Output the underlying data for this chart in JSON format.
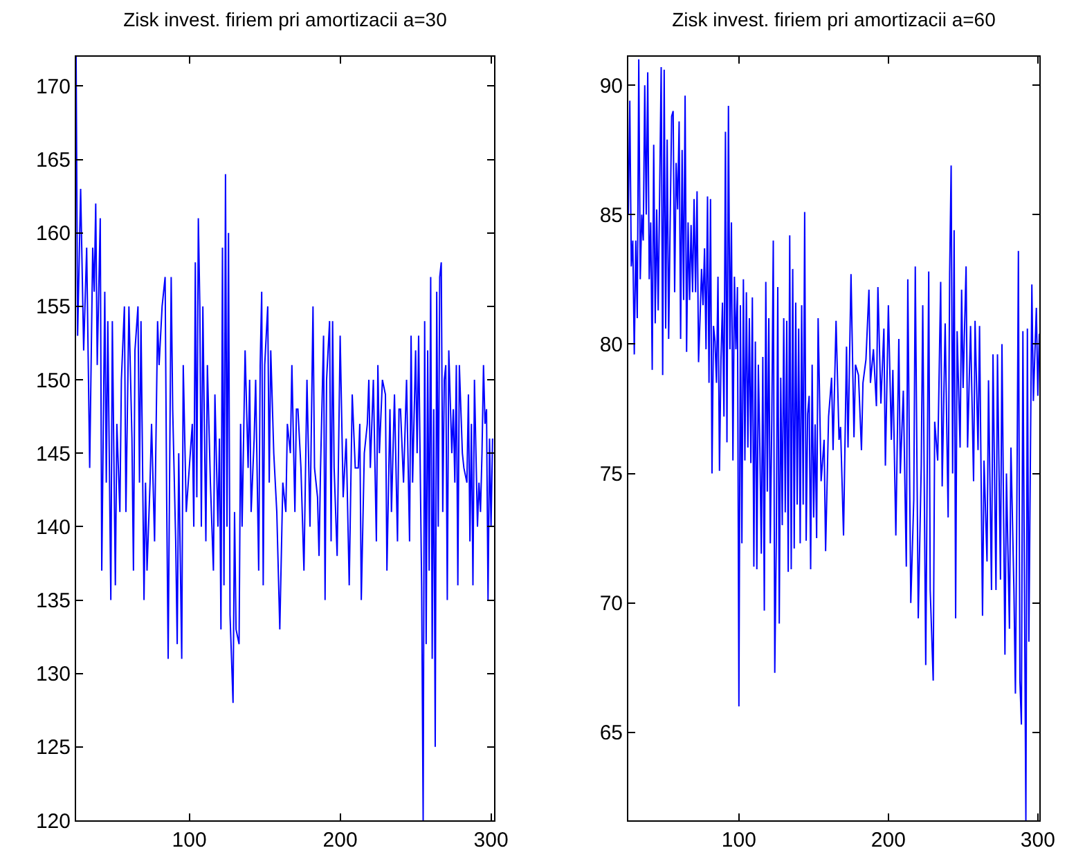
{
  "chart_data": [
    {
      "type": "line",
      "title": "Zisk invest. firiem pri amortizacii a=30",
      "xlim": [
        25,
        302
      ],
      "xticks": [
        100,
        200,
        300
      ],
      "ylim": [
        120,
        172
      ],
      "yticks": [
        120,
        125,
        130,
        135,
        140,
        145,
        150,
        155,
        160,
        165,
        170
      ],
      "grid": false,
      "marker": "none",
      "line_style": "solid",
      "x": [
        25,
        26,
        28,
        30,
        32,
        34,
        36,
        37,
        38,
        39,
        41,
        42,
        44,
        45,
        46,
        48,
        49,
        51,
        52,
        54,
        55,
        57,
        58,
        60,
        62,
        63,
        64,
        66,
        67,
        68,
        70,
        71,
        72,
        74,
        75,
        77,
        79,
        80,
        82,
        84,
        85,
        86,
        88,
        89,
        91,
        92,
        93,
        95,
        96,
        98,
        100,
        102,
        103,
        104,
        105,
        106,
        107,
        108,
        109,
        111,
        112,
        114,
        116,
        117,
        119,
        120,
        121,
        122,
        123,
        124,
        125,
        126,
        127,
        129,
        130,
        131,
        133,
        134,
        135,
        137,
        139,
        140,
        141,
        143,
        144,
        146,
        147,
        148,
        149,
        150,
        152,
        153,
        154,
        156,
        158,
        160,
        162,
        164,
        165,
        167,
        168,
        170,
        171,
        172,
        174,
        176,
        178,
        180,
        182,
        183,
        185,
        186,
        187,
        189,
        190,
        191,
        193,
        194,
        195,
        196,
        198,
        200,
        202,
        204,
        206,
        208,
        210,
        212,
        213,
        214,
        216,
        218,
        219,
        220,
        222,
        224,
        225,
        226,
        228,
        230,
        231,
        233,
        234,
        236,
        238,
        239,
        240,
        242,
        244,
        246,
        247,
        248,
        250,
        251,
        252,
        254,
        255,
        256,
        257,
        258,
        259,
        260,
        261,
        262,
        263,
        264,
        265,
        266,
        267,
        268,
        269,
        270,
        271,
        272,
        274,
        275,
        276,
        277,
        278,
        279,
        281,
        282,
        284,
        285,
        286,
        287,
        288,
        289,
        291,
        292,
        293,
        294,
        295,
        296,
        297,
        298,
        299,
        300,
        301
      ],
      "series": [
        {
          "color": "#0000ff",
          "values": [
            172,
            153,
            163,
            152,
            159,
            144,
            159,
            156,
            162,
            151,
            161,
            137,
            156,
            143,
            154,
            135,
            154,
            136,
            147,
            141,
            150,
            155,
            141,
            155,
            146,
            137,
            152,
            155,
            143,
            154,
            135,
            143,
            137,
            143,
            147,
            139,
            154,
            151,
            155,
            157,
            142,
            131,
            157,
            148,
            139,
            132,
            145,
            131,
            151,
            141,
            144,
            147,
            140,
            158,
            142,
            161,
            155,
            140,
            155,
            139,
            151,
            143,
            137,
            149,
            140,
            146,
            133,
            159,
            136,
            164,
            140,
            160,
            134,
            128,
            141,
            133,
            132,
            147,
            140,
            152,
            144,
            150,
            141,
            146,
            150,
            137,
            151,
            156,
            136,
            151,
            155,
            143,
            152,
            145,
            141,
            133,
            143,
            141,
            147,
            145,
            151,
            141,
            148,
            148,
            144,
            137,
            150,
            140,
            155,
            144,
            142,
            138,
            144,
            153,
            135,
            150,
            154,
            139,
            154,
            144,
            138,
            153,
            142,
            146,
            136,
            149,
            144,
            144,
            147,
            135,
            145,
            147,
            150,
            144,
            150,
            139,
            151,
            145,
            150,
            149,
            137,
            148,
            141,
            149,
            139,
            148,
            148,
            143,
            150,
            139,
            153,
            143,
            152,
            145,
            153,
            136,
            120,
            154,
            132,
            152,
            137,
            157,
            131,
            148,
            125,
            156,
            140,
            157,
            158,
            141,
            150,
            151,
            135,
            152,
            145,
            148,
            143,
            151,
            136,
            151,
            145,
            144,
            143,
            149,
            139,
            147,
            136,
            150,
            140,
            143,
            141,
            145,
            151,
            147,
            148,
            135,
            146,
            140,
            146
          ]
        }
      ]
    },
    {
      "type": "line",
      "title": "Zisk invest. firiem pri amortizacii a=60",
      "xlim": [
        26,
        301
      ],
      "xticks": [
        100,
        200,
        300
      ],
      "ylim": [
        61.6,
        91.1
      ],
      "yticks": [
        65,
        70,
        75,
        80,
        85,
        90
      ],
      "grid": false,
      "marker": "none",
      "line_style": "solid",
      "x": [
        26,
        27,
        28,
        29,
        30,
        31,
        32,
        33,
        34,
        35,
        36,
        37,
        38,
        39,
        40,
        41,
        42,
        43,
        44,
        45,
        46,
        48,
        49,
        50,
        51,
        52,
        53,
        54,
        55,
        56,
        57,
        58,
        59,
        60,
        61,
        62,
        63,
        64,
        65,
        66,
        67,
        68,
        69,
        70,
        71,
        72,
        73,
        74,
        75,
        76,
        77,
        78,
        79,
        80,
        81,
        82,
        83,
        84,
        85,
        86,
        87,
        88,
        89,
        90,
        91,
        92,
        93,
        94,
        95,
        96,
        97,
        98,
        99,
        100,
        101,
        102,
        103,
        104,
        105,
        106,
        107,
        108,
        109,
        110,
        111,
        112,
        113,
        114,
        115,
        116,
        117,
        118,
        119,
        120,
        121,
        122,
        123,
        124,
        125,
        126,
        127,
        128,
        129,
        130,
        131,
        132,
        133,
        134,
        135,
        136,
        137,
        138,
        139,
        140,
        141,
        142,
        143,
        144,
        145,
        146,
        147,
        148,
        149,
        150,
        151,
        152,
        153,
        155,
        157,
        158,
        160,
        162,
        163,
        165,
        167,
        168,
        170,
        172,
        173,
        175,
        177,
        178,
        180,
        182,
        183,
        185,
        187,
        188,
        190,
        192,
        193,
        195,
        197,
        198,
        200,
        202,
        203,
        205,
        207,
        208,
        210,
        212,
        213,
        215,
        217,
        218,
        220,
        222,
        223,
        225,
        227,
        228,
        230,
        231,
        233,
        235,
        236,
        238,
        240,
        241,
        242,
        243,
        244,
        245,
        246,
        248,
        249,
        250,
        252,
        253,
        255,
        257,
        258,
        260,
        261,
        263,
        264,
        266,
        267,
        269,
        270,
        272,
        273,
        275,
        276,
        278,
        279,
        281,
        282,
        284,
        285,
        286,
        287,
        288,
        289,
        290,
        292,
        293,
        294,
        296,
        297,
        299,
        300,
        301
      ],
      "series": [
        {
          "color": "#0000ff",
          "values": [
            85,
            89.4,
            83,
            84,
            79.6,
            84,
            81,
            91,
            82.5,
            85,
            84,
            90,
            85,
            90.5,
            82.5,
            84.7,
            79,
            87.7,
            80.8,
            85.2,
            81.3,
            90.7,
            78.8,
            90.6,
            80.6,
            87.9,
            80.2,
            84.7,
            88.8,
            89,
            82,
            87,
            85.2,
            88.6,
            80.2,
            87.5,
            81.7,
            89.6,
            79.7,
            84.7,
            81.7,
            84.6,
            82,
            85.6,
            82,
            85.9,
            79.3,
            81,
            82.9,
            81.5,
            83.7,
            79.8,
            85.7,
            78.5,
            85.6,
            75,
            80.7,
            80.1,
            78.5,
            82.6,
            75.1,
            79.4,
            81.6,
            77.2,
            88.2,
            76.2,
            89.2,
            79.8,
            84.7,
            75.5,
            82.6,
            79.8,
            82.2,
            66,
            81.5,
            72.3,
            82.5,
            75.5,
            82,
            76,
            81,
            75.4,
            81.8,
            71.4,
            80.1,
            71.3,
            79.2,
            76,
            71.9,
            79.5,
            69.7,
            82.4,
            74.3,
            81,
            72.3,
            77.1,
            84,
            67.3,
            72.4,
            82.2,
            69.2,
            78.7,
            73,
            81,
            73.5,
            80.9,
            71.2,
            84.2,
            71.3,
            82.9,
            72.1,
            81.6,
            73.8,
            80.6,
            72.3,
            81.5,
            73.8,
            85.1,
            72.4,
            77.3,
            78,
            71.3,
            79.2,
            73.3,
            76.9,
            72.5,
            81,
            74.7,
            76.3,
            72,
            77.2,
            78.7,
            75.9,
            80.9,
            76.3,
            76.8,
            72.6,
            79.9,
            76,
            82.7,
            76.4,
            79.2,
            78.8,
            75.9,
            78.5,
            79.4,
            82.1,
            78.5,
            79.8,
            77.6,
            82.2,
            77.7,
            80.6,
            75.3,
            81.5,
            76.3,
            79,
            72.6,
            80.2,
            75,
            78.2,
            71.4,
            82.5,
            70,
            74,
            83,
            69.4,
            75.3,
            81.5,
            67.6,
            82.8,
            70.5,
            67,
            77,
            75.5,
            82.4,
            74.5,
            80.8,
            73.3,
            82.7,
            86.9,
            75,
            84.4,
            69.4,
            80.5,
            76,
            82.1,
            78.3,
            83,
            76,
            80.7,
            74.7,
            80.9,
            75.9,
            80.7,
            69.5,
            75.5,
            71.6,
            78.6,
            70.5,
            79.6,
            70.5,
            79.6,
            70.9,
            80,
            68,
            75,
            69,
            76,
            70.5,
            66.5,
            74,
            83.6,
            67,
            65.3,
            80.5,
            61.6,
            80.6,
            68.5,
            82.3,
            77.8,
            81.4,
            78,
            80.4
          ]
        }
      ]
    }
  ]
}
